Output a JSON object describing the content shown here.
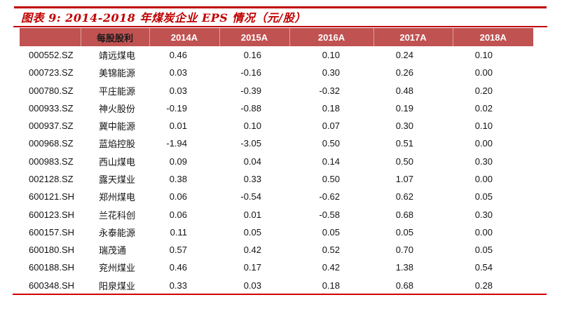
{
  "figure": {
    "title": "图表 9: 2014-2018 年煤炭企业 EPS 情况（元/股）"
  },
  "colors": {
    "accent_red": "#C00000",
    "bottom_rule_red": "#D30000",
    "header_bg": "#C05252",
    "header_year_text": "#FFFFFF",
    "body_text": "#141414"
  },
  "chart_data": {
    "type": "table",
    "title": "图表 9: 2014-2018 年煤炭企业 EPS 情况（元/股）",
    "columns": [
      "",
      "每股股利",
      "2014A",
      "2015A",
      "2016A",
      "2017A",
      "2018A"
    ],
    "unit": "元/股",
    "rows": [
      {
        "code": "000552.SZ",
        "name": "靖远煤电",
        "eps": [
          "0.46",
          "0.16",
          "0.10",
          "0.24",
          "0.10"
        ]
      },
      {
        "code": "000723.SZ",
        "name": "美锦能源",
        "eps": [
          "0.03",
          "-0.16",
          "0.30",
          "0.26",
          "0.00"
        ]
      },
      {
        "code": "000780.SZ",
        "name": "平庄能源",
        "eps": [
          "0.03",
          "-0.39",
          "-0.32",
          "0.48",
          "0.20"
        ]
      },
      {
        "code": "000933.SZ",
        "name": "神火股份",
        "eps": [
          "-0.19",
          "-0.88",
          "0.18",
          "0.19",
          "0.02"
        ]
      },
      {
        "code": "000937.SZ",
        "name": "冀中能源",
        "eps": [
          "0.01",
          "0.10",
          "0.07",
          "0.30",
          "0.10"
        ]
      },
      {
        "code": "000968.SZ",
        "name": "蓝焰控股",
        "eps": [
          "-1.94",
          "-3.05",
          "0.50",
          "0.51",
          "0.00"
        ]
      },
      {
        "code": "000983.SZ",
        "name": "西山煤电",
        "eps": [
          "0.09",
          "0.04",
          "0.14",
          "0.50",
          "0.30"
        ]
      },
      {
        "code": "002128.SZ",
        "name": "露天煤业",
        "eps": [
          "0.38",
          "0.33",
          "0.50",
          "1.07",
          "0.00"
        ]
      },
      {
        "code": "600121.SH",
        "name": "郑州煤电",
        "eps": [
          "0.06",
          "-0.54",
          "-0.62",
          "0.62",
          "0.05"
        ]
      },
      {
        "code": "600123.SH",
        "name": "兰花科创",
        "eps": [
          "0.06",
          "0.01",
          "-0.58",
          "0.68",
          "0.30"
        ]
      },
      {
        "code": "600157.SH",
        "name": "永泰能源",
        "eps": [
          "0.11",
          "0.05",
          "0.05",
          "0.05",
          "0.00"
        ]
      },
      {
        "code": "600180.SH",
        "name": "瑞茂通",
        "eps": [
          "0.57",
          "0.42",
          "0.52",
          "0.70",
          "0.05"
        ]
      },
      {
        "code": "600188.SH",
        "name": "兖州煤业",
        "eps": [
          "0.46",
          "0.17",
          "0.42",
          "1.38",
          "0.54"
        ]
      },
      {
        "code": "600348.SH",
        "name": "阳泉煤业",
        "eps": [
          "0.33",
          "0.03",
          "0.18",
          "0.68",
          "0.28"
        ]
      }
    ]
  }
}
